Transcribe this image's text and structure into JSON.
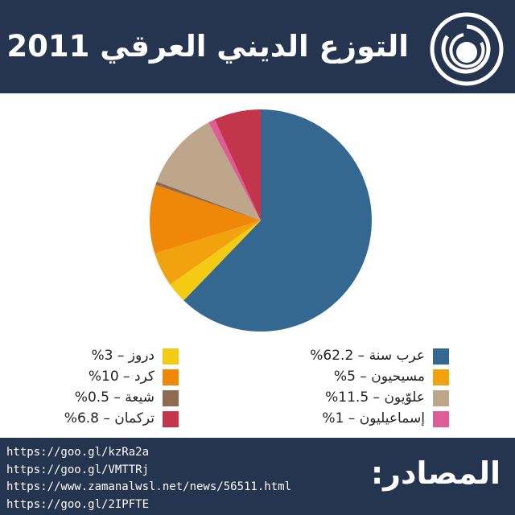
{
  "header": {
    "title": "التوزع الديني العرقي 2011",
    "logo_icon": "circle-logo-icon"
  },
  "chart_data": {
    "type": "pie",
    "title": "التوزع الديني العرقي 2011",
    "start": "top",
    "direction": "clockwise",
    "slices": [
      {
        "label": "عرب سنة",
        "value": 62.2,
        "color": "#346890",
        "legend": "عرب سنة – 62.2%"
      },
      {
        "label": "دروز",
        "value": 3,
        "color": "#f3cb13",
        "legend": "دروز – 3%"
      },
      {
        "label": "مسيحيون",
        "value": 5,
        "color": "#f2a20c",
        "legend": "مسيحيون – 5%"
      },
      {
        "label": "كرد",
        "value": 10,
        "color": "#ef8709",
        "legend": "كرد – 10%"
      },
      {
        "label": "شيعة",
        "value": 0.5,
        "color": "#8e6a50",
        "legend": "شيعة – 0.5%"
      },
      {
        "label": "علويون",
        "value": 11.5,
        "color": "#bea68a",
        "legend": "علوّيون – 11.5%"
      },
      {
        "label": "إسماعيليون",
        "value": 1,
        "color": "#de5d98",
        "legend": "إسماعيليون – 1%"
      },
      {
        "label": "تركمان",
        "value": 6.8,
        "color": "#c2354a",
        "legend": "تركمان – 6.8%"
      }
    ],
    "legend_placement": "bottom"
  },
  "legend": {
    "right_column": [
      0,
      2,
      5,
      6
    ],
    "left_column": [
      1,
      3,
      4,
      7
    ]
  },
  "footer": {
    "sources_label": "المصادر:",
    "sources": [
      "https://goo.gl/kzRa2a",
      "https://goo.gl/VMTTRj",
      "https://www.zamanalwsl.net/news/56511.html",
      "https://goo.gl/2IPFTE"
    ]
  },
  "colors": {
    "header_bg": "#253550",
    "footer_bg": "#253550"
  }
}
